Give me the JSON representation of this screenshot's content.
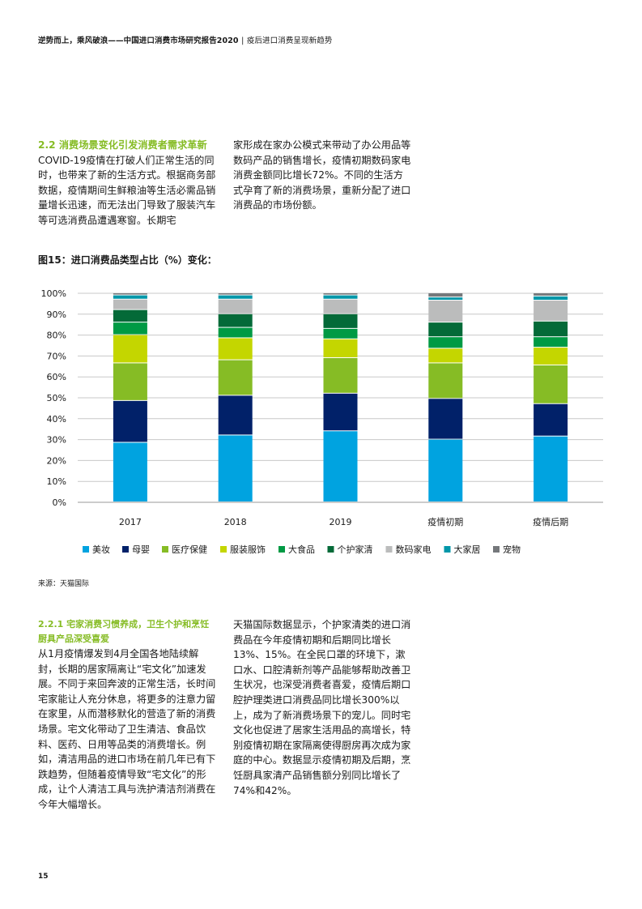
{
  "header": {
    "title": "逆势而上，乘风破浪——中国进口消费市场研究报告2020",
    "separator": "|",
    "subtitle": "疫后进口消费呈现新趋势"
  },
  "section": {
    "title": "2.2 消费场景变化引发消费者需求革新",
    "col1_text": "COVID-19疫情在打破人们正常生活的同时，也带来了新的生活方式。根据商务部数据，疫情期间生鲜粮油等生活必需品销量增长迅速，而无法出门导致了服装汽车等可选消费品遭遇寒窗。长期宅",
    "col2_text": "家形成在家办公模式来带动了办公用品等数码产品的销售增长，疫情初期数码家电消费金额同比增长72%。不同的生活方式孕育了新的消费场景，重新分配了进口消费品的市场份额。"
  },
  "figure": {
    "title": "图15：进口消费品类型占比（%）变化：",
    "source": "来源：天猫国际"
  },
  "chart_data": {
    "type": "bar",
    "stacked": true,
    "categories": [
      "2017",
      "2018",
      "2019",
      "疫情初期",
      "疫情后期"
    ],
    "y_ticks": [
      "0%",
      "10%",
      "20%",
      "30%",
      "40%",
      "50%",
      "60%",
      "70%",
      "80%",
      "90%",
      "100%"
    ],
    "ylim": [
      0,
      100
    ],
    "series": [
      {
        "name": "美妆",
        "color": "#00a3e0",
        "values": [
          28.5,
          32,
          34,
          30,
          31.5
        ]
      },
      {
        "name": "母婴",
        "color": "#012169",
        "values": [
          20,
          19,
          18,
          19.5,
          15.5
        ]
      },
      {
        "name": "医疗保健",
        "color": "#86bc25",
        "values": [
          18,
          17,
          17,
          17,
          18.5
        ]
      },
      {
        "name": "服装服饰",
        "color": "#c4d600",
        "values": [
          13.5,
          10.5,
          9,
          7,
          8.5
        ]
      },
      {
        "name": "大食品",
        "color": "#009a44",
        "values": [
          6,
          5,
          5,
          5.5,
          5
        ]
      },
      {
        "name": "个护家清",
        "color": "#046a38",
        "values": [
          6,
          6.5,
          7,
          7,
          7.5
        ]
      },
      {
        "name": "数码家电",
        "color": "#bbbcbc",
        "values": [
          5,
          7,
          7,
          10.5,
          10
        ]
      },
      {
        "name": "大家居",
        "color": "#0097a9",
        "values": [
          2,
          2,
          2,
          1.5,
          2
        ]
      },
      {
        "name": "宠物",
        "color": "#75787b",
        "values": [
          1,
          1,
          1,
          2,
          1.5
        ]
      }
    ],
    "legend_position": "bottom",
    "grid": true
  },
  "subsection": {
    "title": "2.2.1 宅家消费习惯养成，卫生个护和烹饪厨具产品深受喜爱",
    "col3_text": "从1月疫情爆发到4月全国各地陆续解封，长期的居家隔离让“宅文化”加速发展。不同于来回奔波的正常生活，长时间宅家能让人充分休息，将更多的注意力留在家里，从而潜移默化的营造了新的消费场景。宅文化带动了卫生清洁、食品饮料、医药、日用等品类的消费增长。例如，清洁用品的进口市场在前几年已有下跌趋势，但随着疫情导致“宅文化”的形成，让个人清洁工具与洗护清洁剂消费在今年大幅增长。",
    "col4_text": "天猫国际数据显示，个护家清类的进口消费品在今年疫情初期和后期同比增长13%、15%。在全民口罩的环境下，漱口水、口腔清新剂等产品能够帮助改善卫生状况，也深受消费者喜爱，疫情后期口腔护理类进口消费品同比增长300%以上，成为了新消费场景下的宠儿。同时宅文化也促进了居家生活用品的高增长，特别疫情初期在家隔离使得厨房再次成为家庭的中心。数据显示疫情初期及后期，烹饪厨具家清产品销售额分别同比增长了74%和42%。"
  },
  "page_number": "15"
}
